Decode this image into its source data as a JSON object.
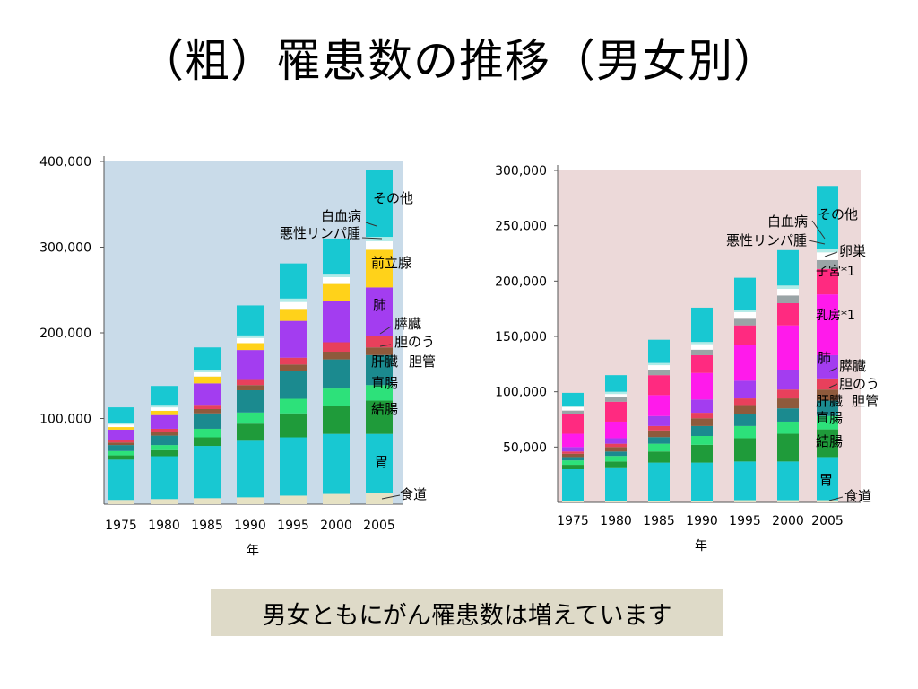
{
  "title": "（粗）罹患数の推移（男女別）",
  "caption": "男女ともにがん罹患数は増えています",
  "chart_data": [
    {
      "type": "bar",
      "stacked": true,
      "panel": "male",
      "background": "#c9dbe9",
      "xlabel": "年",
      "ylabel": "",
      "ylim": [
        0,
        400000
      ],
      "ytick_values": [
        100000,
        200000,
        300000,
        400000
      ],
      "ytick_labels": [
        "100,000",
        "200,000",
        "300,000",
        "400,000"
      ],
      "categories": [
        "1975",
        "1980",
        "1985",
        "1990",
        "1995",
        "2000",
        "2005"
      ],
      "series": [
        {
          "name": "食道",
          "color": "#e6e2c4",
          "values": [
            5000,
            6000,
            7000,
            8000,
            10000,
            12000,
            13000
          ]
        },
        {
          "name": "胃",
          "color": "#18c8d2",
          "values": [
            47000,
            50000,
            61000,
            66000,
            68000,
            70000,
            69000
          ]
        },
        {
          "name": "結腸",
          "color": "#1f9b3a",
          "values": [
            5000,
            7000,
            10000,
            20000,
            28000,
            33000,
            39000
          ]
        },
        {
          "name": "直腸",
          "color": "#2de17a",
          "values": [
            5000,
            6000,
            10000,
            13000,
            17000,
            20000,
            18000
          ]
        },
        {
          "name": "肝臓",
          "color": "#1b8a8f",
          "values": [
            7000,
            11000,
            18000,
            26000,
            33000,
            34000,
            35000
          ]
        },
        {
          "name": "胆のう・胆管",
          "color": "#8e5a3c",
          "values": [
            3000,
            4000,
            5000,
            6000,
            7000,
            9000,
            9000
          ]
        },
        {
          "name": "膵臓",
          "color": "#e8405c",
          "values": [
            3000,
            4000,
            5000,
            6000,
            8000,
            11000,
            13000
          ]
        },
        {
          "name": "肺",
          "color": "#a33df0",
          "values": [
            12000,
            16000,
            25000,
            35000,
            43000,
            48000,
            57000
          ]
        },
        {
          "name": "前立腺",
          "color": "#ffd21a",
          "values": [
            3000,
            5000,
            8000,
            8000,
            14000,
            20000,
            44000
          ]
        },
        {
          "name": "悪性リンパ腫",
          "color": "#ffffff",
          "values": [
            3000,
            4000,
            5000,
            6000,
            8000,
            8000,
            10000
          ]
        },
        {
          "name": "白血病",
          "color": "#b0ece8",
          "values": [
            2000,
            3000,
            3000,
            3000,
            4000,
            4000,
            5000
          ]
        },
        {
          "name": "その他",
          "color": "#18c8d2",
          "values": [
            18000,
            22000,
            26000,
            35000,
            41000,
            41000,
            78000
          ]
        }
      ],
      "annotations": [
        "その他",
        "白血病",
        "悪性リンパ腫",
        "前立腺",
        "肺",
        "膵臓",
        "胆のう",
        "肝臓",
        "胆管",
        "直腸",
        "結腸",
        "胃",
        "食道"
      ]
    },
    {
      "type": "bar",
      "stacked": true,
      "panel": "female",
      "background": "#ecd9d9",
      "xlabel": "年",
      "ylabel": "",
      "ylim": [
        0,
        300000
      ],
      "ytick_values": [
        50000,
        100000,
        150000,
        200000,
        250000,
        300000
      ],
      "ytick_labels": [
        "50,000",
        "100,000",
        "150,000",
        "200,000",
        "250,000",
        "300,000"
      ],
      "categories": [
        "1975",
        "1980",
        "1985",
        "1990",
        "1995",
        "2000",
        "2005"
      ],
      "series": [
        {
          "name": "食道",
          "color": "#e6e2c4",
          "values": [
            1000,
            1000,
            1000,
            1000,
            2000,
            2000,
            2000
          ]
        },
        {
          "name": "胃",
          "color": "#18c8d2",
          "values": [
            29000,
            30000,
            35000,
            35000,
            35000,
            35000,
            39000
          ]
        },
        {
          "name": "結腸",
          "color": "#1f9b3a",
          "values": [
            4000,
            6000,
            10000,
            16000,
            21000,
            25000,
            25000
          ]
        },
        {
          "name": "直腸",
          "color": "#2de17a",
          "values": [
            4000,
            5000,
            7000,
            8000,
            11000,
            11000,
            12000
          ]
        },
        {
          "name": "肝臓",
          "color": "#1b8a8f",
          "values": [
            3000,
            4000,
            6000,
            9000,
            11000,
            12000,
            14000
          ]
        },
        {
          "name": "胆のう・胆管",
          "color": "#8e5a3c",
          "values": [
            3000,
            4000,
            6000,
            7000,
            8000,
            9000,
            10000
          ]
        },
        {
          "name": "膵臓",
          "color": "#e8405c",
          "values": [
            2000,
            3000,
            4000,
            5000,
            6000,
            8000,
            10000
          ]
        },
        {
          "name": "肺",
          "color": "#a33df0",
          "values": [
            4000,
            5000,
            9000,
            12000,
            16000,
            18000,
            21000
          ]
        },
        {
          "name": "乳房",
          "color": "#ff1aeb",
          "values": [
            12000,
            15000,
            19000,
            24000,
            32000,
            40000,
            55000
          ]
        },
        {
          "name": "子宮",
          "color": "#ff2a80",
          "values": [
            18000,
            18000,
            18000,
            16000,
            18000,
            20000,
            23000
          ]
        },
        {
          "name": "卵巣",
          "color": "#9aa4a6",
          "values": [
            3000,
            4000,
            5000,
            5000,
            6000,
            7000,
            8000
          ]
        },
        {
          "name": "悪性リンパ腫",
          "color": "#ffffff",
          "values": [
            3000,
            3000,
            4000,
            5000,
            6000,
            6000,
            7000
          ]
        },
        {
          "name": "白血病",
          "color": "#b0ece8",
          "values": [
            1000,
            2000,
            2000,
            2000,
            2000,
            3000,
            3000
          ]
        },
        {
          "name": "その他",
          "color": "#18c8d2",
          "values": [
            12000,
            15000,
            21000,
            31000,
            29000,
            32000,
            57000
          ]
        }
      ],
      "annotations": [
        "その他",
        "白血病",
        "悪性リンパ腫",
        "卵巣",
        "子宮*1",
        "乳房*1",
        "肺",
        "膵臓",
        "胆のう",
        "肝臓",
        "胆管",
        "直腸",
        "結腸",
        "胃",
        "食道"
      ]
    }
  ]
}
